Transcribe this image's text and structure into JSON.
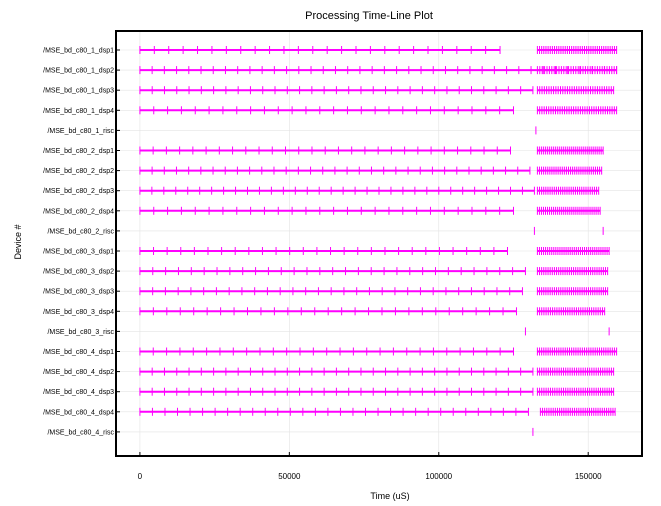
{
  "chart_data": {
    "type": "timeline",
    "title": "Processing Time-Line Plot",
    "xlabel": "Time (uS)",
    "ylabel": "Device #",
    "xlim": [
      -8000,
      168000
    ],
    "x_ticks": [
      0,
      50000,
      100000,
      150000
    ],
    "x_tick_labels": [
      "0",
      "50000",
      "100000",
      "150000"
    ],
    "grid": true,
    "series_color": "#ff00ff",
    "devices": [
      {
        "name": "/MSE_bd_c80_1_dsp1",
        "segments": [
          {
            "start": 0,
            "end": 120500,
            "ticks": 26
          },
          {
            "start": 133000,
            "end": 159500,
            "ticks": 38
          }
        ]
      },
      {
        "name": "/MSE_bd_c80_1_dsp2",
        "segments": [
          {
            "start": 0,
            "end": 159500,
            "ticks": 40
          },
          {
            "start": 133000,
            "end": 159500,
            "ticks": 34
          }
        ]
      },
      {
        "name": "/MSE_bd_c80_1_dsp3",
        "segments": [
          {
            "start": 0,
            "end": 131500,
            "ticks": 33
          },
          {
            "start": 133000,
            "end": 158500,
            "ticks": 34
          }
        ]
      },
      {
        "name": "/MSE_bd_c80_1_dsp4",
        "segments": [
          {
            "start": 0,
            "end": 125000,
            "ticks": 28
          },
          {
            "start": 133000,
            "end": 159500,
            "ticks": 36
          }
        ]
      },
      {
        "name": "/MSE_bd_c80_1_risc",
        "segments": [
          {
            "start": 132500,
            "end": 132500,
            "ticks": 1
          }
        ]
      },
      {
        "name": "/MSE_bd_c80_2_dsp1",
        "segments": [
          {
            "start": 0,
            "end": 124000,
            "ticks": 29
          },
          {
            "start": 133000,
            "end": 155000,
            "ticks": 34
          }
        ]
      },
      {
        "name": "/MSE_bd_c80_2_dsp2",
        "segments": [
          {
            "start": 0,
            "end": 130500,
            "ticks": 33
          },
          {
            "start": 133000,
            "end": 154500,
            "ticks": 32
          }
        ]
      },
      {
        "name": "/MSE_bd_c80_2_dsp3",
        "segments": [
          {
            "start": 0,
            "end": 132000,
            "ticks": 34
          },
          {
            "start": 133000,
            "end": 153500,
            "ticks": 30
          }
        ]
      },
      {
        "name": "/MSE_bd_c80_2_dsp4",
        "segments": [
          {
            "start": 0,
            "end": 125000,
            "ticks": 28
          },
          {
            "start": 133000,
            "end": 154000,
            "ticks": 32
          }
        ]
      },
      {
        "name": "/MSE_bd_c80_2_risc",
        "segments": [
          {
            "start": 132000,
            "end": 132000,
            "ticks": 1
          },
          {
            "start": 155000,
            "end": 155000,
            "ticks": 1
          }
        ]
      },
      {
        "name": "/MSE_bd_c80_3_dsp1",
        "segments": [
          {
            "start": 0,
            "end": 123000,
            "ticks": 28
          },
          {
            "start": 133000,
            "end": 157000,
            "ticks": 36
          }
        ]
      },
      {
        "name": "/MSE_bd_c80_3_dsp2",
        "segments": [
          {
            "start": 0,
            "end": 129000,
            "ticks": 31
          },
          {
            "start": 133000,
            "end": 156500,
            "ticks": 34
          }
        ]
      },
      {
        "name": "/MSE_bd_c80_3_dsp3",
        "segments": [
          {
            "start": 0,
            "end": 128000,
            "ticks": 31
          },
          {
            "start": 133000,
            "end": 156500,
            "ticks": 34
          }
        ]
      },
      {
        "name": "/MSE_bd_c80_3_dsp4",
        "segments": [
          {
            "start": 0,
            "end": 126000,
            "ticks": 29
          },
          {
            "start": 133000,
            "end": 155500,
            "ticks": 32
          }
        ]
      },
      {
        "name": "/MSE_bd_c80_3_risc",
        "segments": [
          {
            "start": 129000,
            "end": 129000,
            "ticks": 1
          },
          {
            "start": 157000,
            "end": 157000,
            "ticks": 1
          }
        ]
      },
      {
        "name": "/MSE_bd_c80_4_dsp1",
        "segments": [
          {
            "start": 0,
            "end": 125000,
            "ticks": 29
          },
          {
            "start": 133000,
            "end": 159500,
            "ticks": 38
          }
        ]
      },
      {
        "name": "/MSE_bd_c80_4_dsp2",
        "segments": [
          {
            "start": 0,
            "end": 131500,
            "ticks": 33
          },
          {
            "start": 133000,
            "end": 158500,
            "ticks": 36
          }
        ]
      },
      {
        "name": "/MSE_bd_c80_4_dsp3",
        "segments": [
          {
            "start": 0,
            "end": 131500,
            "ticks": 33
          },
          {
            "start": 133000,
            "end": 158500,
            "ticks": 36
          }
        ]
      },
      {
        "name": "/MSE_bd_c80_4_dsp4",
        "segments": [
          {
            "start": 0,
            "end": 130000,
            "ticks": 32
          },
          {
            "start": 134000,
            "end": 159000,
            "ticks": 36
          }
        ]
      },
      {
        "name": "/MSE_bd_c80_4_risc",
        "segments": [
          {
            "start": 131500,
            "end": 131500,
            "ticks": 1
          }
        ]
      }
    ]
  }
}
